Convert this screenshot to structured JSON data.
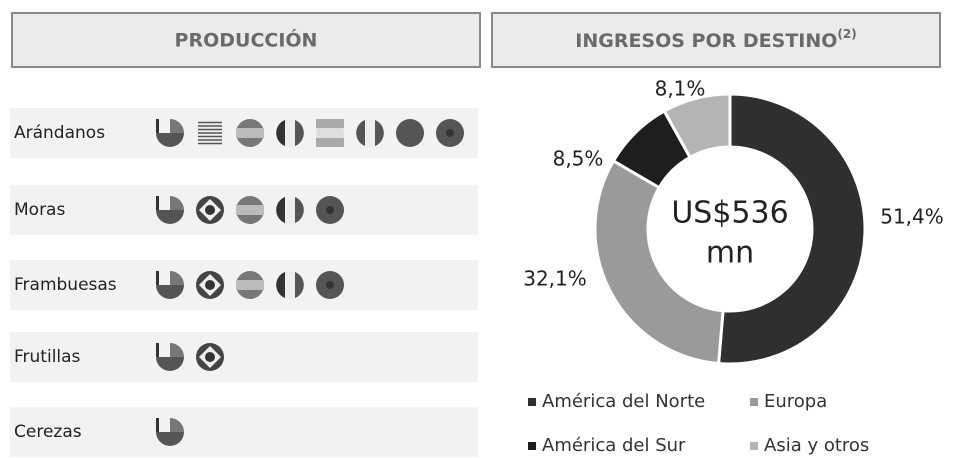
{
  "production": {
    "title": "PRODUCCIÓN",
    "rows": [
      "Arándanos",
      "Moras",
      "Frambuesas",
      "Frutillas",
      "Cerezas"
    ]
  },
  "chart_data": {
    "type": "donut",
    "title": "INGRESOS POR DESTINO",
    "title_note": "(2)",
    "center_label": [
      "US$536",
      "mn"
    ],
    "categories": [
      "América del Norte",
      "Europa",
      "América del Sur",
      "Asia y otros"
    ],
    "values": [
      51.4,
      32.1,
      8.5,
      8.1
    ],
    "value_labels": [
      "51,4%",
      "32,1%",
      "8,5%",
      "8,1%"
    ],
    "colors": [
      "#2f2f2f",
      "#9a9a9a",
      "#1e1e1e",
      "#b4b4b4"
    ]
  }
}
